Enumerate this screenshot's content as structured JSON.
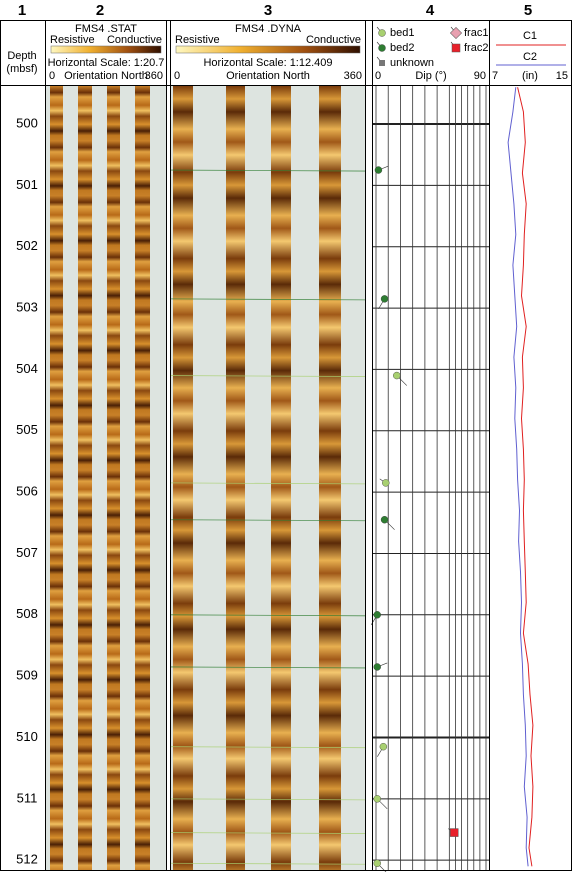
{
  "columns": [
    "1",
    "2",
    "3",
    "4",
    "5"
  ],
  "track1": {
    "title": [
      "Depth",
      "(mbsf)"
    ],
    "depth_lim": [
      499.38,
      512.16
    ],
    "depth_ticks": [
      500,
      501,
      502,
      503,
      504,
      505,
      506,
      507,
      508,
      509,
      510,
      511,
      512
    ]
  },
  "track2": {
    "title": "FMS4 .STAT",
    "left": "Resistive",
    "right": "Conductive",
    "scale": "Horizontal Scale: 1:20.7",
    "start": "0",
    "orientation": "Orientation North",
    "end": "360"
  },
  "track3": {
    "title": "FMS4 .DYNA",
    "left": "Resistive",
    "right": "Conductive",
    "scale": "Horizontal Scale: 1:12.409",
    "start": "0",
    "orientation": "Orientation North",
    "end": "360"
  },
  "track4": {
    "legend": [
      {
        "name": "bed1",
        "color": "#a8d070"
      },
      {
        "name": "bed2",
        "color": "#2e7d32"
      },
      {
        "name": "unknown",
        "color": "#777777"
      },
      {
        "name": "frac1",
        "color": "#e8a0b0"
      },
      {
        "name": "frac2",
        "color": "#e8202a"
      }
    ],
    "dip_label": "Dip (°)",
    "dip_lim": [
      0,
      90
    ],
    "dip_grid": [
      10,
      20,
      30,
      40,
      50,
      60,
      65,
      70,
      75,
      80,
      85
    ],
    "dips": [
      {
        "type": "bed2",
        "depth": 500.75,
        "dip": 2
      },
      {
        "type": "bed2",
        "depth": 502.85,
        "dip": 7
      },
      {
        "type": "bed1",
        "depth": 504.1,
        "dip": 17
      },
      {
        "type": "bed1",
        "depth": 505.85,
        "dip": 8
      },
      {
        "type": "bed2",
        "depth": 506.45,
        "dip": 7
      },
      {
        "type": "bed2",
        "depth": 508.0,
        "dip": 1
      },
      {
        "type": "bed2",
        "depth": 508.85,
        "dip": 1
      },
      {
        "type": "bed1",
        "depth": 510.15,
        "dip": 6
      },
      {
        "type": "bed1",
        "depth": 511.0,
        "dip": 1
      },
      {
        "type": "frac2",
        "depth": 511.55,
        "dip": 64
      },
      {
        "type": "bed1",
        "depth": 512.05,
        "dip": 1
      }
    ]
  },
  "track5": {
    "c1": {
      "name": "C1",
      "color": "#e02020"
    },
    "c2": {
      "name": "C2",
      "color": "#6060d0"
    },
    "lim": [
      7,
      15
    ],
    "unit": "(in)",
    "depths": [
      499.4,
      499.8,
      500.3,
      500.8,
      501.3,
      501.8,
      502.3,
      502.8,
      503.3,
      503.8,
      504.3,
      504.8,
      505.3,
      505.8,
      506.3,
      506.8,
      507.3,
      507.8,
      508.3,
      508.8,
      509.3,
      509.8,
      510.3,
      510.8,
      511.3,
      511.8,
      512.1
    ],
    "C1": [
      9.7,
      10.3,
      10.5,
      10.2,
      10.6,
      10.4,
      10.3,
      10.1,
      10.6,
      10.2,
      10.3,
      10.1,
      10.3,
      10.4,
      10.3,
      10.4,
      10.5,
      10.6,
      10.3,
      10.8,
      11.0,
      11.3,
      11.1,
      11.3,
      11.2,
      10.9,
      11.2
    ],
    "C2": [
      9.5,
      9.2,
      8.7,
      9.0,
      9.3,
      9.5,
      9.2,
      9.4,
      9.6,
      9.3,
      9.5,
      9.4,
      9.6,
      9.7,
      9.9,
      9.8,
      10.0,
      10.1,
      10.0,
      10.2,
      10.3,
      10.5,
      10.6,
      10.4,
      10.7,
      10.6,
      10.8
    ]
  }
}
